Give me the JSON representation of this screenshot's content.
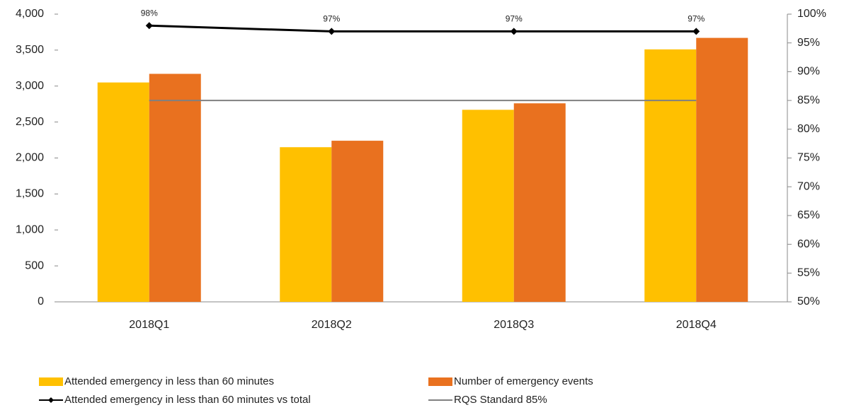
{
  "chart_data": {
    "type": "bar",
    "categories": [
      "2018Q1",
      "2018Q2",
      "2018Q3",
      "2018Q4"
    ],
    "series": [
      {
        "name": "Attended emergency in less than 60 minutes",
        "type": "bar",
        "color": "#ffc000",
        "values": [
          3050,
          2150,
          2670,
          3510
        ]
      },
      {
        "name": "Number of emergency events",
        "type": "bar",
        "color": "#e9711f",
        "values": [
          3170,
          2240,
          2760,
          3670
        ]
      },
      {
        "name": "Attended emergency in less than 60 minutes vs total",
        "type": "line",
        "axis": "y2",
        "color": "#000000",
        "marker": "diamond",
        "values": [
          98,
          97,
          97,
          97
        ],
        "value_labels": [
          "98%",
          "97%",
          "97%",
          "97%"
        ]
      },
      {
        "name": "RQS Standard 85%",
        "type": "line",
        "axis": "y2",
        "color": "#808080",
        "values": [
          85,
          85,
          85,
          85
        ]
      }
    ],
    "ylim": [
      0,
      4000
    ],
    "yticks": [
      0,
      500,
      {
        "value": 1000,
        "label": "1,000"
      },
      {
        "value": 1500,
        "label": "1,500"
      },
      {
        "value": 2000,
        "label": "2,000"
      },
      {
        "value": 2500,
        "label": "2,500"
      },
      {
        "value": 3000,
        "label": "3,000"
      },
      {
        "value": 3500,
        "label": "3,500"
      },
      {
        "value": 4000,
        "label": "4,000"
      }
    ],
    "y2lim": [
      50,
      100
    ],
    "y2ticks": [
      {
        "value": 50,
        "label": "50%"
      },
      {
        "value": 55,
        "label": "55%"
      },
      {
        "value": 60,
        "label": "60%"
      },
      {
        "value": 65,
        "label": "65%"
      },
      {
        "value": 70,
        "label": "70%"
      },
      {
        "value": 75,
        "label": "75%"
      },
      {
        "value": 80,
        "label": "80%"
      },
      {
        "value": 85,
        "label": "85%"
      },
      {
        "value": 90,
        "label": "90%"
      },
      {
        "value": 95,
        "label": "95%"
      },
      {
        "value": 100,
        "label": "100%"
      }
    ],
    "legend": "bottom"
  }
}
